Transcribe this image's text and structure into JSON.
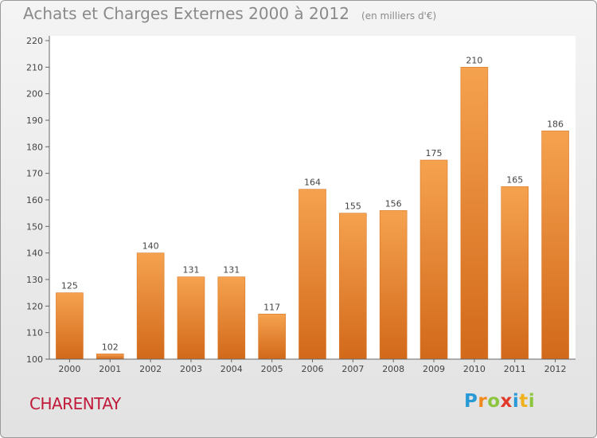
{
  "chart_data": {
    "type": "bar",
    "title": "Achats et Charges Externes 2000 à 2012",
    "unit_note": "(en milliers d'€)",
    "categories": [
      "2000",
      "2001",
      "2002",
      "2003",
      "2004",
      "2005",
      "2006",
      "2007",
      "2008",
      "2009",
      "2010",
      "2011",
      "2012"
    ],
    "values": [
      125,
      102,
      140,
      131,
      131,
      117,
      164,
      155,
      156,
      175,
      210,
      165,
      186
    ],
    "ylim": [
      100,
      220
    ],
    "yticks": [
      100,
      110,
      120,
      130,
      140,
      150,
      160,
      170,
      180,
      190,
      200,
      210,
      220
    ],
    "grid": false,
    "bar_color_top": "#f5a24f",
    "bar_color_bottom": "#d2691a"
  },
  "place": "CHARENTAY",
  "logo": {
    "text": "Proxiti",
    "letters": [
      {
        "ch": "P",
        "color": "#2a9ad6"
      },
      {
        "ch": "r",
        "color": "#f08a1c"
      },
      {
        "ch": "o",
        "color": "#8cc63f"
      },
      {
        "ch": "x",
        "color": "#e2382a"
      },
      {
        "ch": "i",
        "color": "#2a9ad6"
      },
      {
        "ch": "t",
        "color": "#f0b21c"
      },
      {
        "ch": "i",
        "color": "#8cc63f"
      }
    ]
  }
}
